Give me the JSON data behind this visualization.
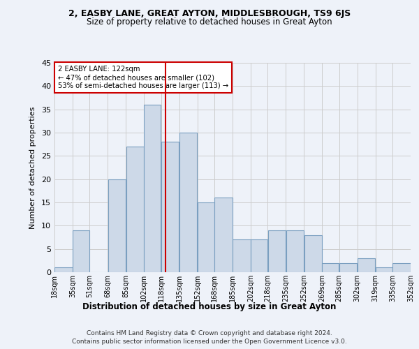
{
  "title1": "2, EASBY LANE, GREAT AYTON, MIDDLESBROUGH, TS9 6JS",
  "title2": "Size of property relative to detached houses in Great Ayton",
  "xlabel": "Distribution of detached houses by size in Great Ayton",
  "ylabel": "Number of detached properties",
  "footnote1": "Contains HM Land Registry data © Crown copyright and database right 2024.",
  "footnote2": "Contains public sector information licensed under the Open Government Licence v3.0.",
  "annotation_line1": "2 EASBY LANE: 122sqm",
  "annotation_line2": "← 47% of detached houses are smaller (102)",
  "annotation_line3": "53% of semi-detached houses are larger (113) →",
  "bin_edges": [
    18,
    35,
    51,
    68,
    85,
    102,
    118,
    135,
    152,
    168,
    185,
    202,
    218,
    235,
    252,
    269,
    285,
    302,
    319,
    335,
    352
  ],
  "counts": [
    1,
    9,
    0,
    20,
    27,
    36,
    28,
    30,
    15,
    16,
    7,
    7,
    9,
    9,
    8,
    2,
    2,
    3,
    1,
    2
  ],
  "bar_facecolor": "#cdd9e8",
  "bar_edgecolor": "#7a9fc0",
  "vline_x": 122,
  "vline_color": "#cc0000",
  "annotation_box_edgecolor": "#cc0000",
  "annotation_box_facecolor": "#ffffff",
  "grid_color": "#cccccc",
  "background_color": "#eef2f9",
  "ylim": [
    0,
    45
  ],
  "yticks": [
    0,
    5,
    10,
    15,
    20,
    25,
    30,
    35,
    40,
    45
  ]
}
